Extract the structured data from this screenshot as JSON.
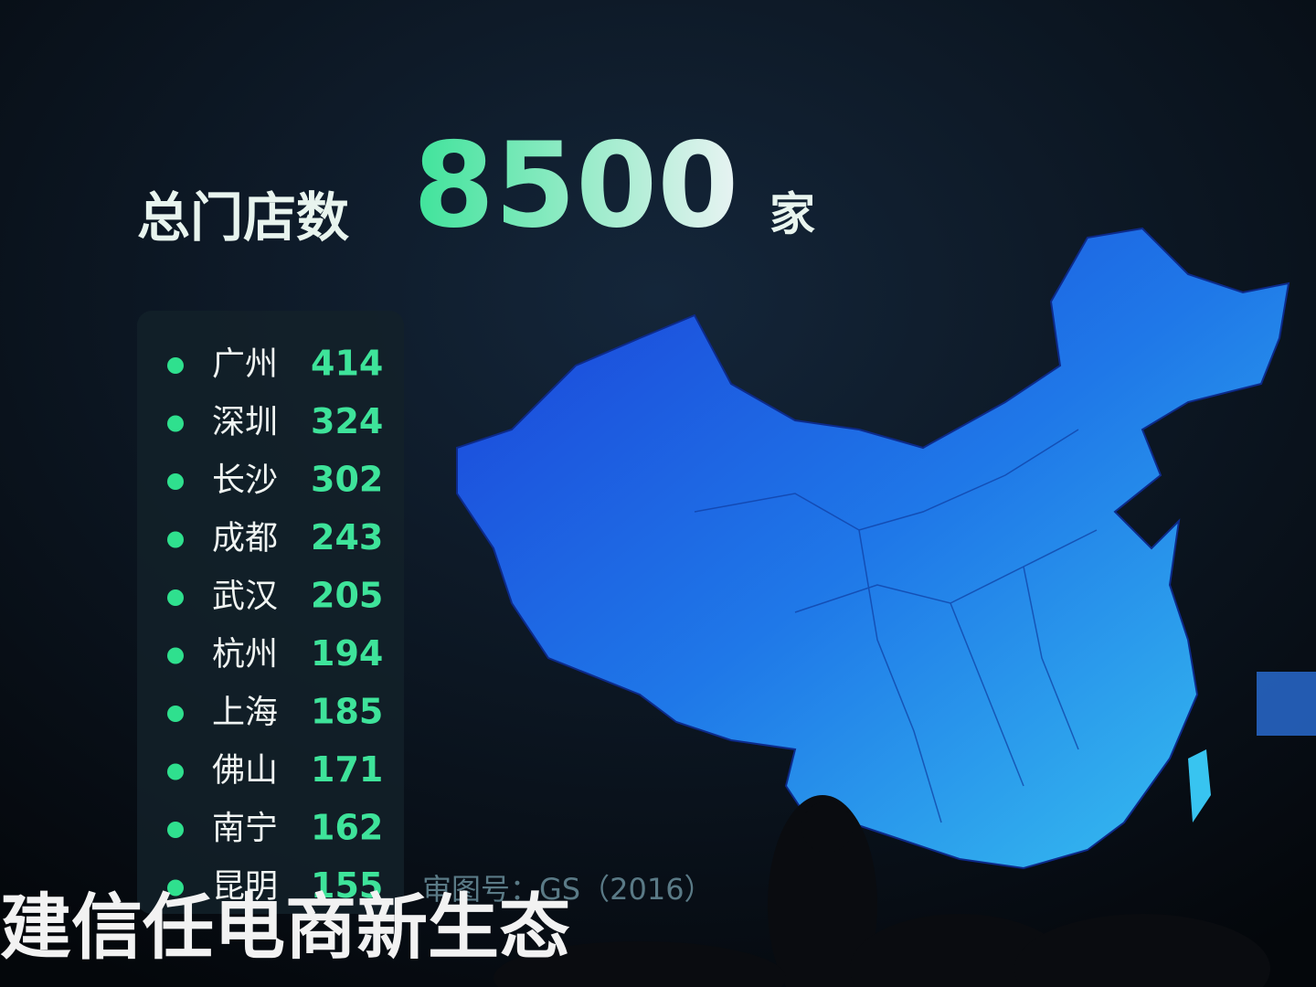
{
  "header": {
    "label": "总门店数",
    "number": "8500",
    "unit": "家"
  },
  "city_list": [
    {
      "city": "广州",
      "count": "414"
    },
    {
      "city": "深圳",
      "count": "324"
    },
    {
      "city": "长沙",
      "count": "302"
    },
    {
      "city": "成都",
      "count": "243"
    },
    {
      "city": "武汉",
      "count": "205"
    },
    {
      "city": "杭州",
      "count": "194"
    },
    {
      "city": "上海",
      "count": "185"
    },
    {
      "city": "佛山",
      "count": "171"
    },
    {
      "city": "南宁",
      "count": "162"
    },
    {
      "city": "昆明",
      "count": "155"
    }
  ],
  "map_note": "审图号：GS（2016）",
  "banner": "建信任电商新生态"
}
